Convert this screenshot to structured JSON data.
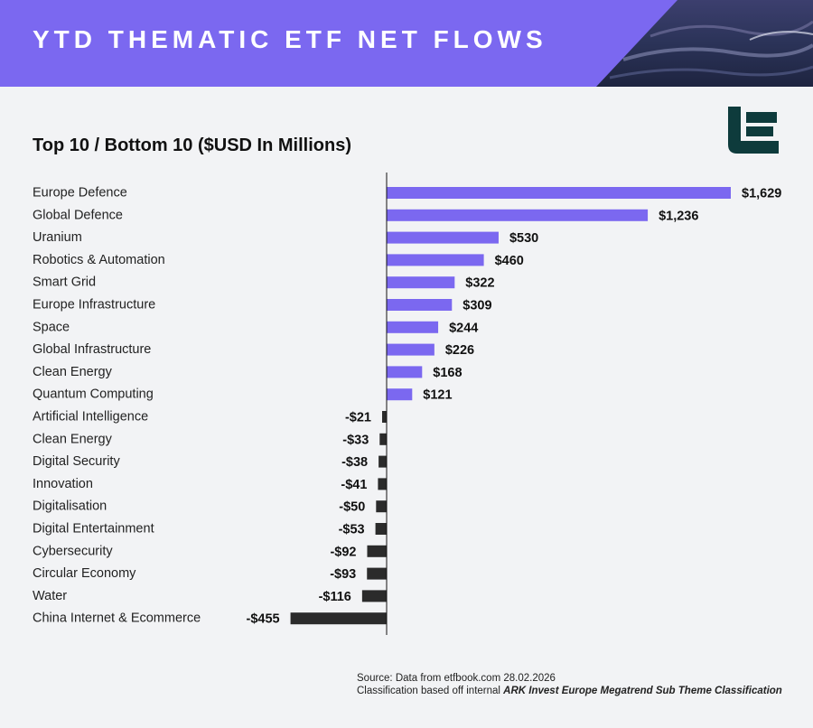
{
  "header": {
    "title": "YTD THEMATIC ETF NET FLOWS",
    "colors": {
      "banner": "#7b68f0",
      "positive": "#7b68f0",
      "negative": "#2b2b2b",
      "logo": "#0e3b3c"
    }
  },
  "logo": {
    "icon": "etfbook-e-logo-icon"
  },
  "chart_data": {
    "type": "bar",
    "orientation": "horizontal",
    "title": "Top 10 / Bottom 10 ($USD In Millions)",
    "xlabel": "",
    "ylabel": "",
    "grid": false,
    "categories": [
      "Europe Defence",
      "Global Defence",
      "Uranium",
      "Robotics & Automation",
      "Smart Grid",
      "Europe Infrastructure",
      "Space",
      "Global Infrastructure",
      "Clean Energy",
      "Quantum Computing",
      "Artificial Intelligence",
      "Clean Energy",
      "Digital Security",
      "Innovation",
      "Digitalisation",
      "Digital Entertainment",
      "Cybersecurity",
      "Circular Economy",
      "Water",
      "China Internet & Ecommerce"
    ],
    "values": [
      1629,
      1236,
      530,
      460,
      322,
      309,
      244,
      226,
      168,
      121,
      -21,
      -33,
      -38,
      -41,
      -50,
      -53,
      -92,
      -93,
      -116,
      -455
    ],
    "value_labels": [
      "$1,629",
      "$1,236",
      "$530",
      "$460",
      "$322",
      "$309",
      "$244",
      "$226",
      "$168",
      "$121",
      "-$21",
      "-$33",
      "-$38",
      "-$41",
      "-$50",
      "-$53",
      "-$92",
      "-$93",
      "-$116",
      "-$455"
    ]
  },
  "footer": {
    "source": "Source: Data from etfbook.com 28.02.2026",
    "classification_prefix": "Classification based off internal ",
    "classification_name": "ARK Invest Europe Megatrend Sub Theme Classification"
  }
}
